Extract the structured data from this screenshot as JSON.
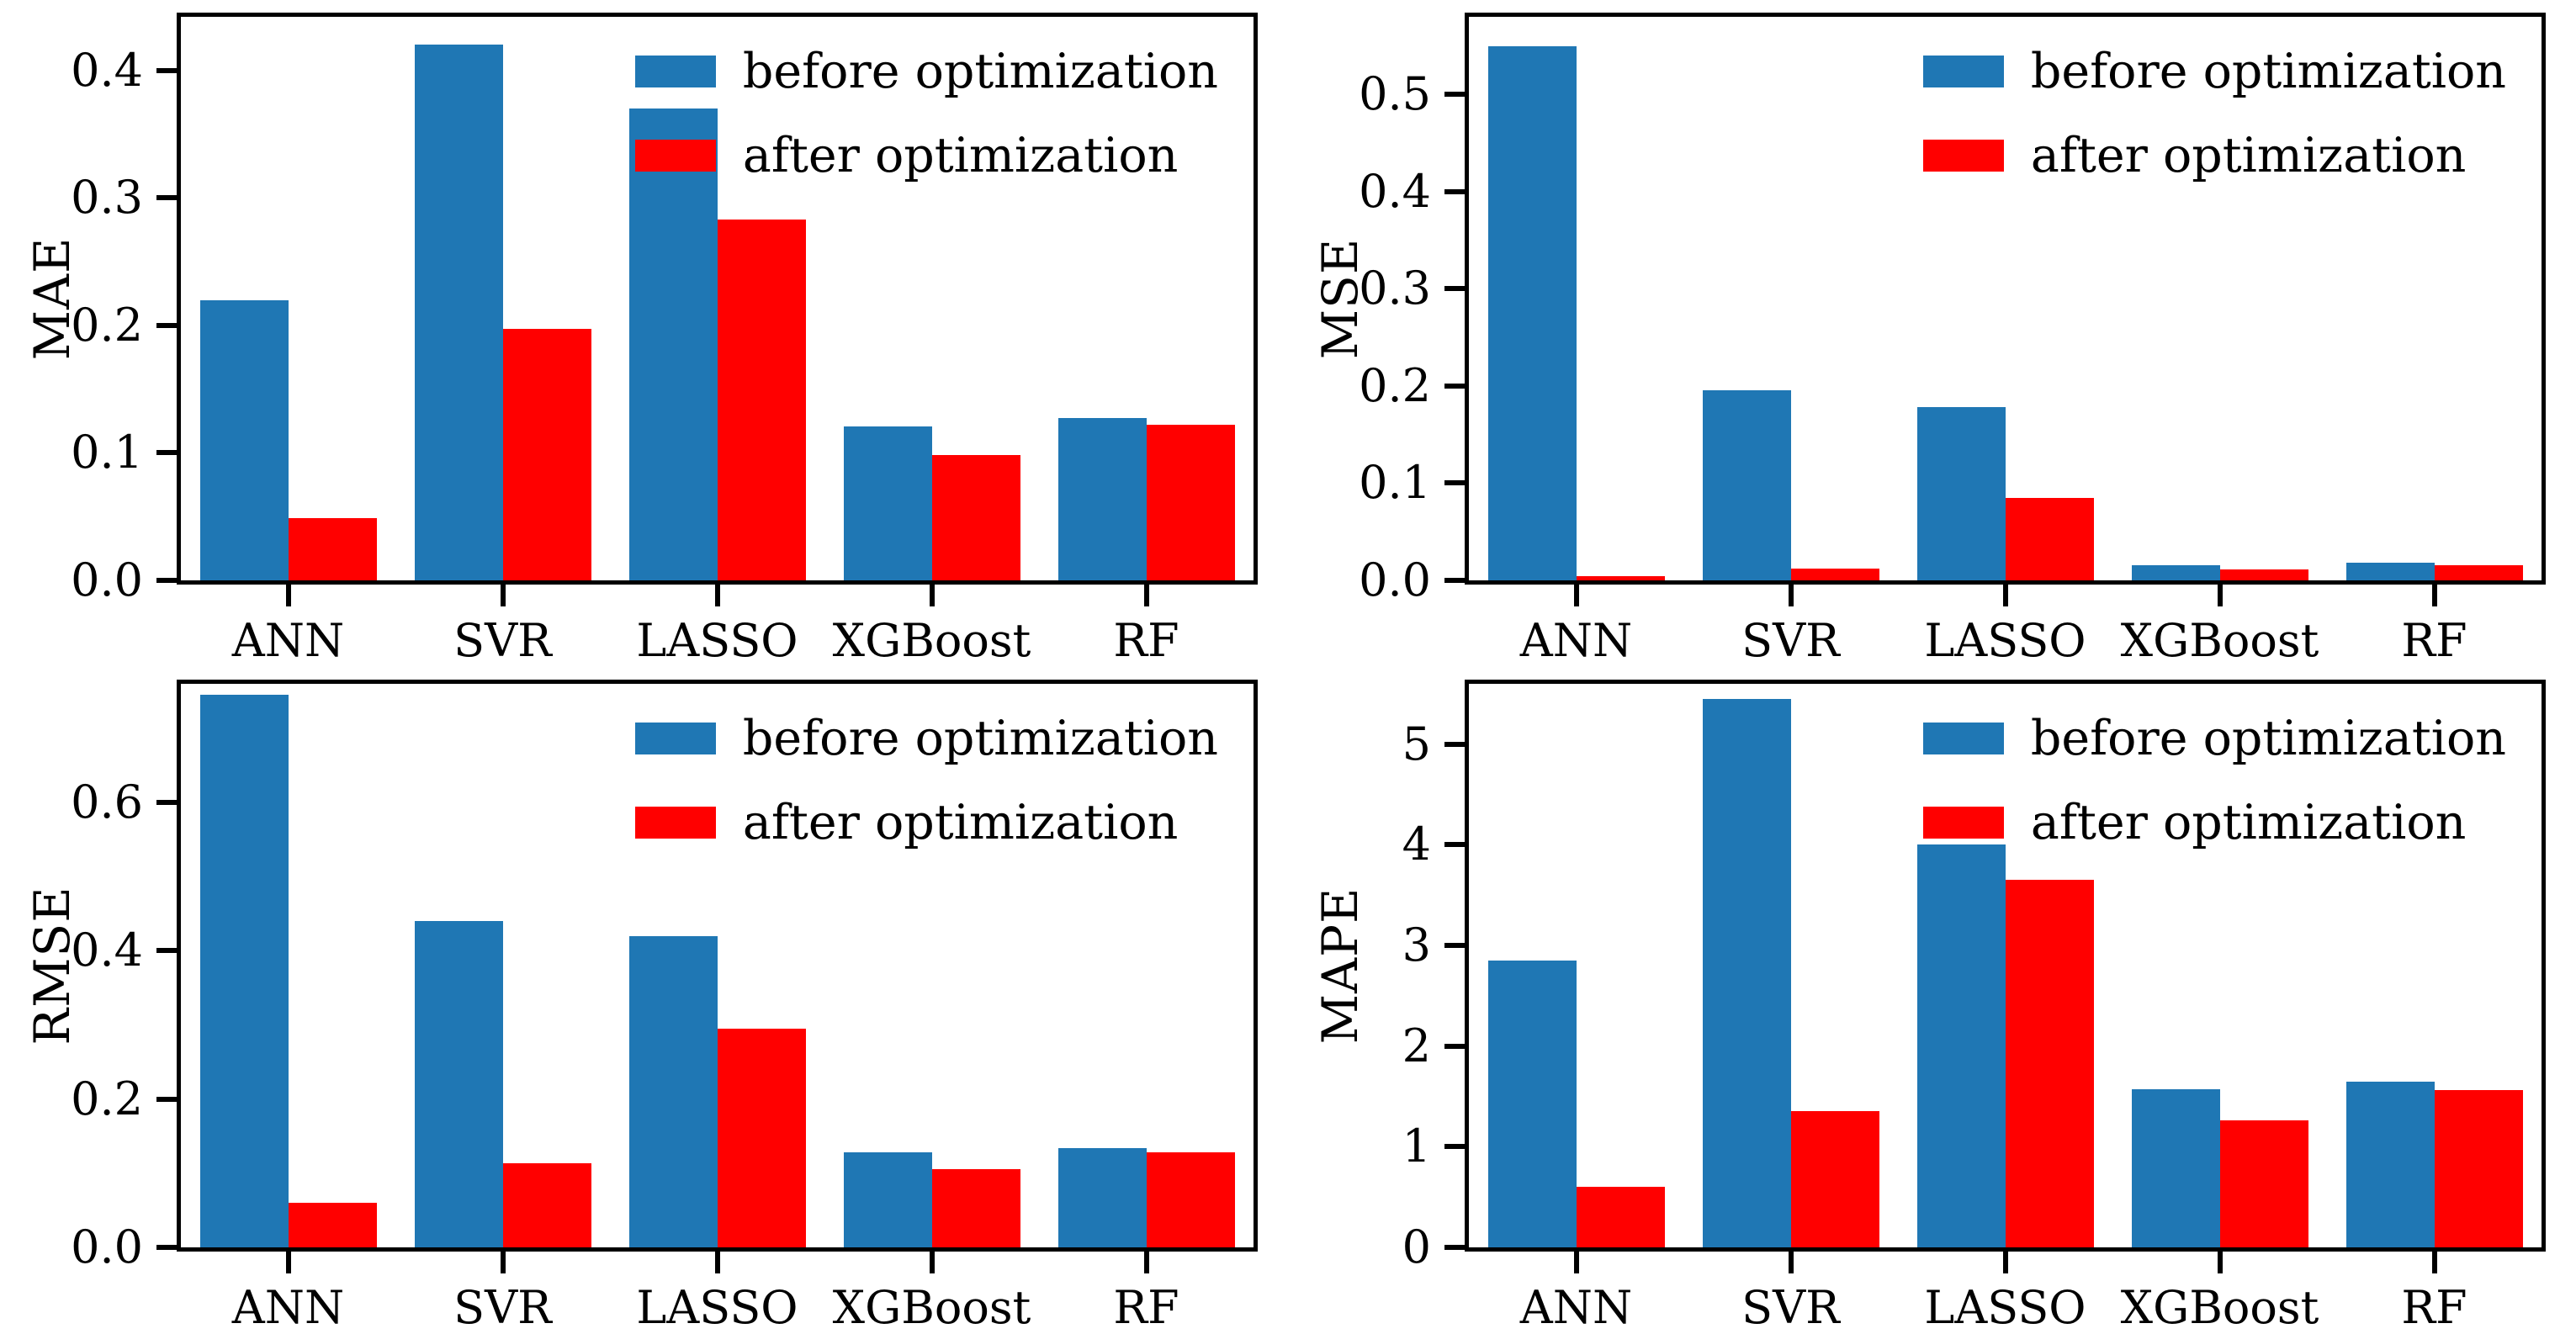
{
  "figure": {
    "background": "#ffffff",
    "rows": 2,
    "cols": 2
  },
  "colors": {
    "before": "#1f77b4",
    "after": "#ff0000",
    "axis": "#000000",
    "text": "#000000"
  },
  "legend": {
    "before_label": "before optimization",
    "after_label": "after optimization",
    "position": "upper right"
  },
  "chart_data": [
    {
      "type": "bar",
      "title": "",
      "xlabel": "",
      "ylabel": "MAE",
      "categories": [
        "ANN",
        "SVR",
        "LASSO",
        "XGBoost",
        "RF"
      ],
      "series": [
        {
          "name": "before optimization",
          "color": "#1f77b4",
          "values": [
            0.22,
            0.42,
            0.37,
            0.121,
            0.127
          ]
        },
        {
          "name": "after optimization",
          "color": "#ff0000",
          "values": [
            0.049,
            0.197,
            0.283,
            0.098,
            0.122
          ]
        }
      ],
      "ylim": [
        0,
        0.442
      ],
      "yticks": [
        0.0,
        0.1,
        0.2,
        0.3,
        0.4
      ],
      "ytick_labels": [
        "0.0",
        "0.1",
        "0.2",
        "0.3",
        "0.4"
      ],
      "grid": false,
      "legend_position": "upper right"
    },
    {
      "type": "bar",
      "title": "",
      "xlabel": "",
      "ylabel": "MSE",
      "categories": [
        "ANN",
        "SVR",
        "LASSO",
        "XGBoost",
        "RF"
      ],
      "series": [
        {
          "name": "before optimization",
          "color": "#1f77b4",
          "values": [
            0.55,
            0.196,
            0.178,
            0.016,
            0.018
          ]
        },
        {
          "name": "after optimization",
          "color": "#ff0000",
          "values": [
            0.004,
            0.012,
            0.085,
            0.011,
            0.016
          ]
        }
      ],
      "ylim": [
        0,
        0.58
      ],
      "yticks": [
        0.0,
        0.1,
        0.2,
        0.3,
        0.4,
        0.5
      ],
      "ytick_labels": [
        "0.0",
        "0.1",
        "0.2",
        "0.3",
        "0.4",
        "0.5"
      ],
      "grid": false,
      "legend_position": "upper right"
    },
    {
      "type": "bar",
      "title": "",
      "xlabel": "",
      "ylabel": "RMSE",
      "categories": [
        "ANN",
        "SVR",
        "LASSO",
        "XGBoost",
        "RF"
      ],
      "series": [
        {
          "name": "before optimization",
          "color": "#1f77b4",
          "values": [
            0.745,
            0.44,
            0.42,
            0.128,
            0.134
          ]
        },
        {
          "name": "after optimization",
          "color": "#ff0000",
          "values": [
            0.06,
            0.113,
            0.295,
            0.106,
            0.128
          ]
        }
      ],
      "ylim": [
        0,
        0.76
      ],
      "yticks": [
        0.0,
        0.2,
        0.4,
        0.6
      ],
      "ytick_labels": [
        "0.0",
        "0.2",
        "0.4",
        "0.6"
      ],
      "grid": false,
      "legend_position": "upper right"
    },
    {
      "type": "bar",
      "title": "",
      "xlabel": "",
      "ylabel": "MAPE",
      "categories": [
        "ANN",
        "SVR",
        "LASSO",
        "XGBoost",
        "RF"
      ],
      "series": [
        {
          "name": "before optimization",
          "color": "#1f77b4",
          "values": [
            2.85,
            5.45,
            4.0,
            1.57,
            1.65
          ]
        },
        {
          "name": "after optimization",
          "color": "#ff0000",
          "values": [
            0.6,
            1.35,
            3.65,
            1.26,
            1.56
          ]
        }
      ],
      "ylim": [
        0,
        5.6
      ],
      "yticks": [
        0,
        1,
        2,
        3,
        4,
        5
      ],
      "ytick_labels": [
        "0",
        "1",
        "2",
        "3",
        "4",
        "5"
      ],
      "grid": false,
      "legend_position": "upper right"
    }
  ]
}
